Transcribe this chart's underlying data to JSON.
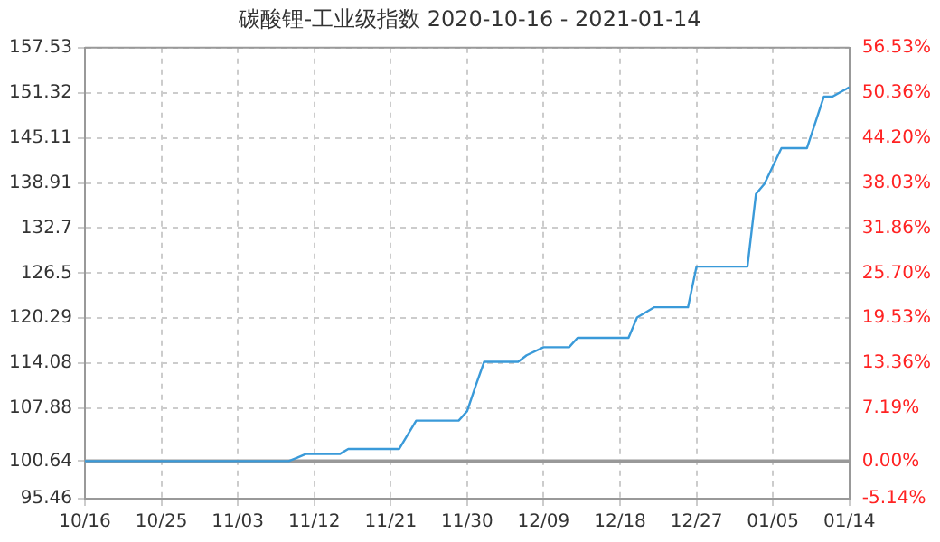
{
  "chart_data": {
    "type": "line",
    "title": "碳酸锂-工业级指数 2020-10-16 - 2021-01-14",
    "x": [
      "2020-10-16",
      "2020-11-09",
      "2020-11-10",
      "2020-11-11",
      "2020-11-15",
      "2020-11-16",
      "2020-11-22",
      "2020-11-24",
      "2020-11-29",
      "2020-11-30",
      "2020-12-01",
      "2020-12-02",
      "2020-12-06",
      "2020-12-07",
      "2020-12-09",
      "2020-12-12",
      "2020-12-13",
      "2020-12-19",
      "2020-12-20",
      "2020-12-22",
      "2020-12-26",
      "2020-12-27",
      "2021-01-02",
      "2021-01-03",
      "2021-01-04",
      "2021-01-06",
      "2021-01-09",
      "2021-01-11",
      "2021-01-12",
      "2021-01-14"
    ],
    "series": [
      {
        "color": "#3a9ad9",
        "values": [
          100.64,
          100.64,
          101.1,
          101.6,
          101.6,
          102.3,
          102.3,
          106.2,
          106.2,
          107.5,
          111,
          114.3,
          114.3,
          115.2,
          116.3,
          116.3,
          117.6,
          117.6,
          120.4,
          121.8,
          121.8,
          127.4,
          127.4,
          137.4,
          138.8,
          143.7,
          143.7,
          150.8,
          150.8,
          152.1
        ]
      }
    ],
    "xlim": [
      "2020-10-16",
      "2021-01-14"
    ],
    "xticks": [
      {
        "value": "2020-10-16",
        "label": "10/16"
      },
      {
        "value": "2020-10-25",
        "label": "10/25"
      },
      {
        "value": "2020-11-03",
        "label": "11/03"
      },
      {
        "value": "2020-11-12",
        "label": "11/12"
      },
      {
        "value": "2020-11-21",
        "label": "11/21"
      },
      {
        "value": "2020-11-30",
        "label": "11/30"
      },
      {
        "value": "2020-12-09",
        "label": "12/09"
      },
      {
        "value": "2020-12-18",
        "label": "12/18"
      },
      {
        "value": "2020-12-27",
        "label": "12/27"
      },
      {
        "value": "2021-01-05",
        "label": "01/05"
      },
      {
        "value": "2021-01-14",
        "label": "01/14"
      }
    ],
    "ylim": [
      95.46,
      157.53
    ],
    "yticks": [
      95.46,
      100.64,
      107.88,
      114.08,
      120.29,
      126.5,
      132.7,
      138.91,
      145.11,
      151.32,
      157.53
    ],
    "y2lim": [
      -5.14,
      56.53
    ],
    "y2ticks": [
      {
        "value": -5.14,
        "label": "-5.14%"
      },
      {
        "value": 0,
        "label": "0.00%"
      },
      {
        "value": 7.19,
        "label": "7.19%"
      },
      {
        "value": 13.36,
        "label": "13.36%"
      },
      {
        "value": 19.53,
        "label": "19.53%"
      },
      {
        "value": 25.7,
        "label": "25.70%"
      },
      {
        "value": 31.86,
        "label": "31.86%"
      },
      {
        "value": 38.03,
        "label": "38.03%"
      },
      {
        "value": 44.2,
        "label": "44.20%"
      },
      {
        "value": 50.36,
        "label": "50.36%"
      },
      {
        "value": 56.53,
        "label": "56.53%"
      }
    ],
    "ref_lines": [
      {
        "axis": "y2",
        "value": 0,
        "color": "#999999"
      }
    ],
    "grid": true,
    "legend": false,
    "marker": "none",
    "line_style": "solid"
  }
}
